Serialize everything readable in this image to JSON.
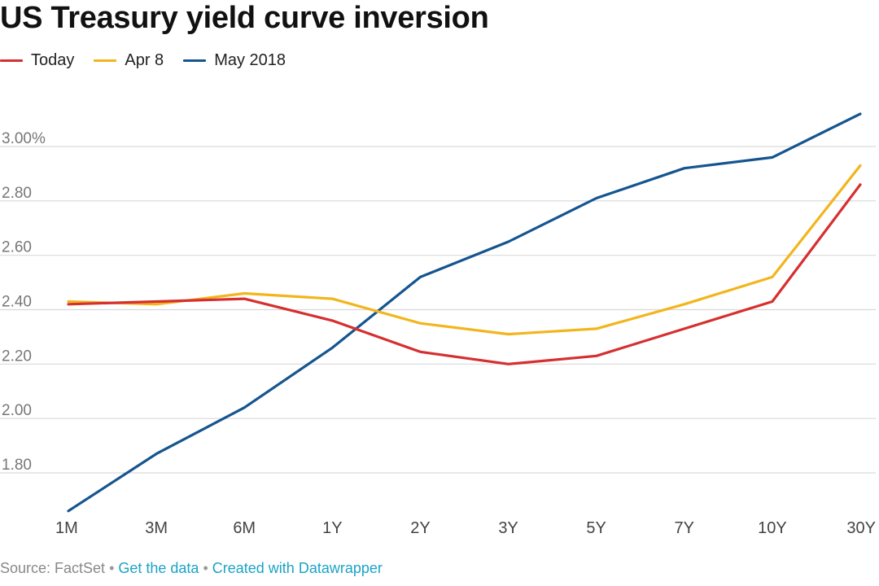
{
  "title": "US Treasury yield curve inversion",
  "footer": {
    "source": "Source: FactSet",
    "separator": "•",
    "get_data": "Get the data",
    "created_with": "Created with Datawrapper"
  },
  "chart_data": {
    "type": "line",
    "title": "US Treasury yield curve inversion",
    "xlabel": "",
    "ylabel": "",
    "categories": [
      "1M",
      "3M",
      "6M",
      "1Y",
      "2Y",
      "3Y",
      "5Y",
      "7Y",
      "10Y",
      "30Y"
    ],
    "yticks": [
      1.8,
      2.0,
      2.2,
      2.4,
      2.6,
      2.8,
      3.0
    ],
    "ytick_labels": [
      "1.80",
      "2.00",
      "2.20",
      "2.40",
      "2.60",
      "2.80",
      "3.00%"
    ],
    "ylim": [
      1.66,
      3.13
    ],
    "grid": true,
    "legend_position": "top-left",
    "series": [
      {
        "name": "Today",
        "color": "#d62f2f",
        "values": [
          2.42,
          2.43,
          2.44,
          2.36,
          2.245,
          2.2,
          2.23,
          2.33,
          2.43,
          2.86
        ]
      },
      {
        "name": "Apr 8",
        "color": "#f2b51c",
        "values": [
          2.43,
          2.42,
          2.46,
          2.44,
          2.35,
          2.31,
          2.33,
          2.42,
          2.52,
          2.93
        ]
      },
      {
        "name": "May 2018",
        "color": "#15558f",
        "values": [
          1.66,
          1.87,
          2.04,
          2.26,
          2.52,
          2.65,
          2.81,
          2.92,
          2.96,
          3.12
        ]
      }
    ]
  }
}
